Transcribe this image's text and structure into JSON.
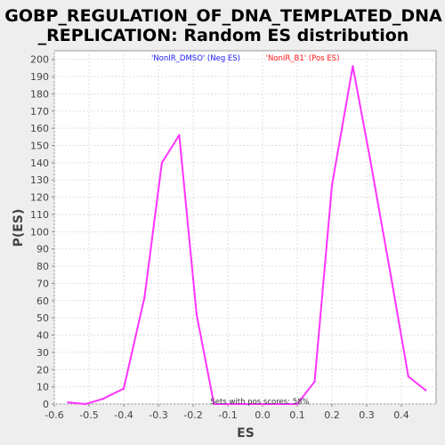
{
  "chart_data": {
    "type": "line",
    "title_line1": "GOBP_REGULATION_OF_DNA_TEMPLATED_DNA",
    "title_line2": "_REPLICATION: Random ES distribution",
    "xlabel": "ES",
    "ylabel": "P(ES)",
    "xlim": [
      -0.6,
      0.5
    ],
    "ylim": [
      0,
      205
    ],
    "xticks": [
      -0.6,
      -0.5,
      -0.4,
      -0.3,
      -0.2,
      -0.1,
      0.0,
      0.1,
      0.2,
      0.3,
      0.4
    ],
    "xtick_labels": [
      "-0.6",
      "-0.5",
      "-0.4",
      "-0.3",
      "-0.2",
      "-0.1",
      "0.0",
      "0.1",
      "0.2",
      "0.3",
      "0.4"
    ],
    "yticks": [
      0,
      10,
      20,
      30,
      40,
      50,
      60,
      70,
      80,
      90,
      100,
      110,
      120,
      130,
      140,
      150,
      160,
      170,
      180,
      190,
      200
    ],
    "grid": true,
    "legend": {
      "placement": "top",
      "neg_label": "'NonIR_DMSO' (Neg ES)",
      "pos_label": "'NonIR_B1' (Pos ES)",
      "neg_color": "#1a1aff",
      "pos_color": "#ff1a1a"
    },
    "annotation": "Sets with pos scores: 58%",
    "line_color": "#ff33ff",
    "series": [
      {
        "x": [
          -0.56,
          -0.51,
          -0.46,
          -0.4,
          -0.34,
          -0.29,
          -0.24,
          -0.19,
          -0.14,
          -0.09,
          -0.04,
          0.01,
          0.06,
          0.1,
          0.15,
          0.2,
          0.26,
          0.31,
          0.37,
          0.42,
          0.47
        ],
        "y": [
          1,
          0,
          3,
          9,
          62,
          140,
          156,
          52,
          0,
          0,
          0,
          0,
          0,
          0,
          13,
          127,
          196,
          142,
          74,
          16,
          8
        ]
      }
    ]
  }
}
